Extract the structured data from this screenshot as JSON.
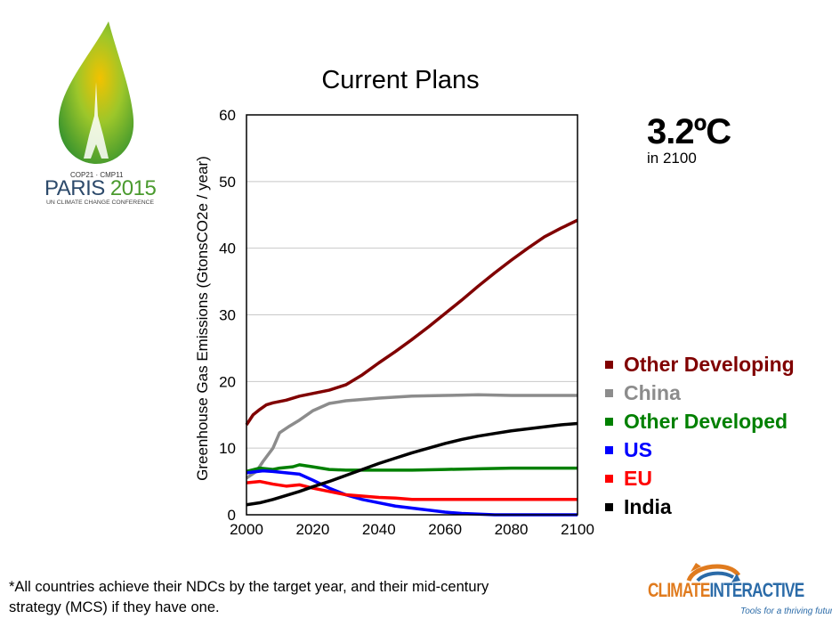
{
  "logo": {
    "line1": "COP21 · CMP11",
    "city": "PARIS",
    "year": "2015",
    "line3": "UN CLIMATE CHANGE CONFERENCE"
  },
  "headline": {
    "temperature": "3.2ºC",
    "subtitle": "in 2100"
  },
  "footnote": "*All countries achieve their NDCs by the target year, and their mid-century strategy (MCS) if they have one.",
  "brand": {
    "climate": "CLIMATE",
    "interactive": "INTERACTIVE",
    "tagline": "Tools for a thriving future"
  },
  "chart_data": {
    "type": "line",
    "title": "Current Plans",
    "ylabel": "Greenhouse Gas Emissions  (GtonsCO2e / year)",
    "xlabel": "",
    "xlim": [
      2000,
      2100
    ],
    "ylim": [
      0,
      60
    ],
    "xticks": [
      2000,
      2020,
      2040,
      2060,
      2080,
      2100
    ],
    "yticks": [
      0,
      10,
      20,
      30,
      40,
      50,
      60
    ],
    "grid": true,
    "legend_position": "right",
    "series": [
      {
        "name": "Other Developing",
        "color": "#800000",
        "points": [
          [
            2000,
            13.5
          ],
          [
            2002,
            15
          ],
          [
            2004,
            15.8
          ],
          [
            2006,
            16.5
          ],
          [
            2008,
            16.8
          ],
          [
            2010,
            17.0
          ],
          [
            2012,
            17.2
          ],
          [
            2014,
            17.5
          ],
          [
            2016,
            17.8
          ],
          [
            2018,
            18.0
          ],
          [
            2020,
            18.2
          ],
          [
            2025,
            18.7
          ],
          [
            2030,
            19.5
          ],
          [
            2035,
            21.0
          ],
          [
            2040,
            22.8
          ],
          [
            2045,
            24.5
          ],
          [
            2050,
            26.3
          ],
          [
            2055,
            28.2
          ],
          [
            2060,
            30.2
          ],
          [
            2065,
            32.2
          ],
          [
            2070,
            34.3
          ],
          [
            2075,
            36.3
          ],
          [
            2080,
            38.2
          ],
          [
            2085,
            40.0
          ],
          [
            2090,
            41.7
          ],
          [
            2095,
            43.0
          ],
          [
            2100,
            44.2
          ]
        ]
      },
      {
        "name": "China",
        "color": "#8c8c8c",
        "points": [
          [
            2000,
            5.5
          ],
          [
            2003,
            6.5
          ],
          [
            2005,
            8.0
          ],
          [
            2008,
            10.0
          ],
          [
            2010,
            12.3
          ],
          [
            2013,
            13.3
          ],
          [
            2016,
            14.2
          ],
          [
            2020,
            15.6
          ],
          [
            2025,
            16.7
          ],
          [
            2030,
            17.1
          ],
          [
            2035,
            17.3
          ],
          [
            2040,
            17.5
          ],
          [
            2050,
            17.8
          ],
          [
            2060,
            17.9
          ],
          [
            2070,
            18.0
          ],
          [
            2080,
            17.9
          ],
          [
            2090,
            17.9
          ],
          [
            2100,
            17.9
          ]
        ]
      },
      {
        "name": "Other Developed",
        "color": "#008000",
        "points": [
          [
            2000,
            6.5
          ],
          [
            2004,
            7.0
          ],
          [
            2008,
            6.8
          ],
          [
            2010,
            7.0
          ],
          [
            2014,
            7.2
          ],
          [
            2016,
            7.5
          ],
          [
            2020,
            7.2
          ],
          [
            2025,
            6.8
          ],
          [
            2030,
            6.7
          ],
          [
            2040,
            6.7
          ],
          [
            2050,
            6.7
          ],
          [
            2060,
            6.8
          ],
          [
            2070,
            6.9
          ],
          [
            2080,
            7.0
          ],
          [
            2090,
            7.0
          ],
          [
            2100,
            7.0
          ]
        ]
      },
      {
        "name": "US",
        "color": "#0000ff",
        "points": [
          [
            2000,
            6.3
          ],
          [
            2005,
            6.6
          ],
          [
            2008,
            6.5
          ],
          [
            2012,
            6.3
          ],
          [
            2016,
            6.1
          ],
          [
            2020,
            5.2
          ],
          [
            2025,
            4.0
          ],
          [
            2030,
            3.0
          ],
          [
            2035,
            2.3
          ],
          [
            2040,
            1.8
          ],
          [
            2045,
            1.3
          ],
          [
            2050,
            1.0
          ],
          [
            2055,
            0.7
          ],
          [
            2060,
            0.4
          ],
          [
            2065,
            0.2
          ],
          [
            2070,
            0.1
          ],
          [
            2075,
            0.0
          ],
          [
            2080,
            0.0
          ],
          [
            2090,
            0.0
          ],
          [
            2100,
            0.0
          ]
        ]
      },
      {
        "name": "EU",
        "color": "#ff0000",
        "points": [
          [
            2000,
            4.8
          ],
          [
            2004,
            5.0
          ],
          [
            2008,
            4.6
          ],
          [
            2012,
            4.3
          ],
          [
            2016,
            4.5
          ],
          [
            2020,
            4.0
          ],
          [
            2025,
            3.5
          ],
          [
            2030,
            3.0
          ],
          [
            2035,
            2.8
          ],
          [
            2040,
            2.6
          ],
          [
            2045,
            2.5
          ],
          [
            2050,
            2.3
          ],
          [
            2060,
            2.3
          ],
          [
            2070,
            2.3
          ],
          [
            2080,
            2.3
          ],
          [
            2090,
            2.3
          ],
          [
            2100,
            2.3
          ]
        ]
      },
      {
        "name": "India",
        "color": "#000000",
        "points": [
          [
            2000,
            1.5
          ],
          [
            2004,
            1.8
          ],
          [
            2008,
            2.3
          ],
          [
            2012,
            2.9
          ],
          [
            2016,
            3.5
          ],
          [
            2020,
            4.2
          ],
          [
            2025,
            5.0
          ],
          [
            2030,
            5.9
          ],
          [
            2035,
            6.8
          ],
          [
            2040,
            7.7
          ],
          [
            2045,
            8.5
          ],
          [
            2050,
            9.3
          ],
          [
            2055,
            10.0
          ],
          [
            2060,
            10.7
          ],
          [
            2065,
            11.3
          ],
          [
            2070,
            11.8
          ],
          [
            2075,
            12.2
          ],
          [
            2080,
            12.6
          ],
          [
            2085,
            12.9
          ],
          [
            2090,
            13.2
          ],
          [
            2095,
            13.5
          ],
          [
            2100,
            13.7
          ]
        ]
      }
    ]
  }
}
